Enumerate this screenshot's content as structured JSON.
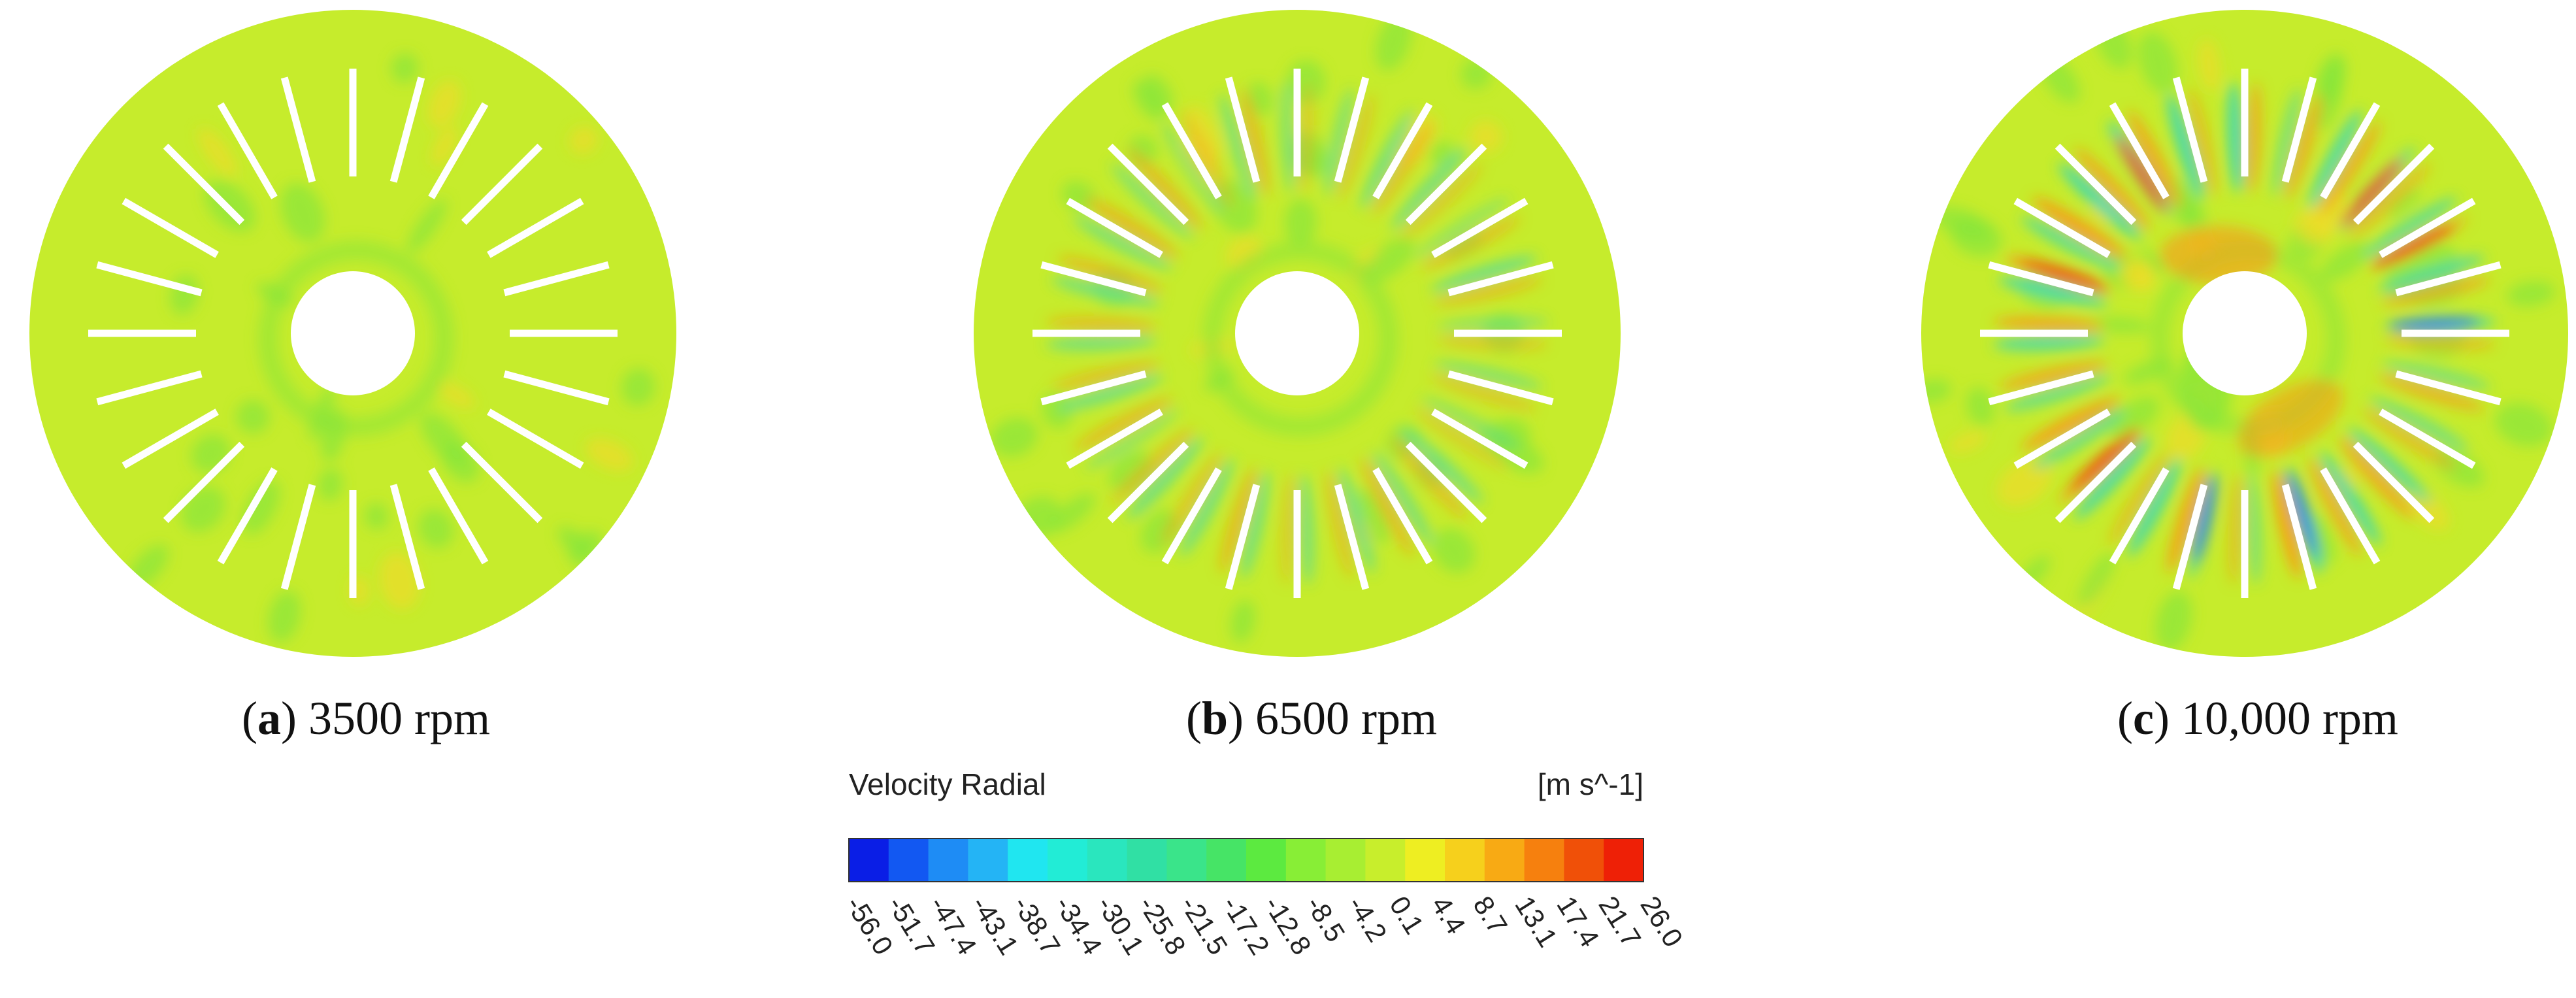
{
  "panels": [
    {
      "id": "a",
      "letter": "a",
      "label": "3500 rpm"
    },
    {
      "id": "b",
      "letter": "b",
      "label": "6500 rpm"
    },
    {
      "id": "c",
      "letter": "c",
      "label": "10,000 rpm"
    }
  ],
  "legend": {
    "title": "Velocity Radial",
    "unit": "[m s^-1]",
    "ticks": [
      "-56.0",
      "-51.7",
      "-47.4",
      "-43.1",
      "-38.7",
      "-34.4",
      "-30.1",
      "-25.8",
      "-21.5",
      "-17.2",
      "-12.8",
      "-8.5",
      "-4.2",
      "0.1",
      "4.4",
      "8.7",
      "13.1",
      "17.4",
      "21.7",
      "26.0"
    ],
    "colors": [
      "#0a1ee6",
      "#1258f2",
      "#1e8cf5",
      "#24b4f5",
      "#20e6f0",
      "#22ecd6",
      "#2ae6be",
      "#30e0a4",
      "#3ae48a",
      "#46e466",
      "#5cea40",
      "#88ee36",
      "#a8ee32",
      "#c8ee2c",
      "#eeee22",
      "#f6d01c",
      "#f8aa14",
      "#f6800e",
      "#f05008",
      "#ee2006"
    ]
  },
  "field_colors": {
    "base": "#c6ec2c",
    "green": "#88e63a",
    "cyan": "#3ed8b0",
    "blue": "#2878f0",
    "yellow": "#eedc28",
    "orange": "#f4a018",
    "red": "#ee3a10"
  }
}
